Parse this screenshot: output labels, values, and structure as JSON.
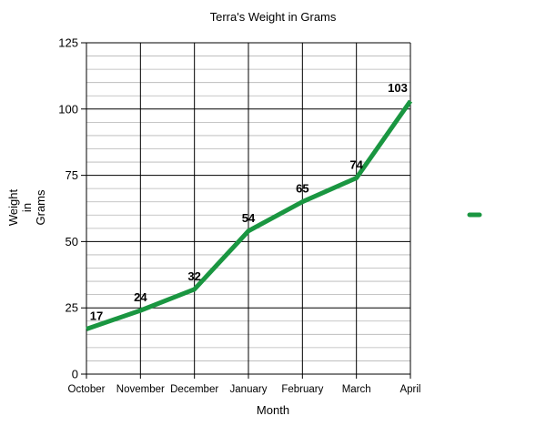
{
  "chart_data": {
    "type": "line",
    "title": "Terra's Weight in Grams",
    "xlabel": "Month",
    "ylabel": [
      "Weight",
      "in",
      "Grams"
    ],
    "categories": [
      "October",
      "November",
      "December",
      "January",
      "February",
      "March",
      "April"
    ],
    "series": [
      {
        "values": [
          17,
          24,
          32,
          54,
          65,
          74,
          103
        ],
        "color": "#1a9641"
      }
    ],
    "ylim": [
      0,
      125
    ],
    "y_major_ticks": [
      0,
      25,
      50,
      75,
      100,
      125
    ],
    "y_minor_step": 5,
    "grid": true,
    "data_labels": true,
    "legend": "right"
  }
}
